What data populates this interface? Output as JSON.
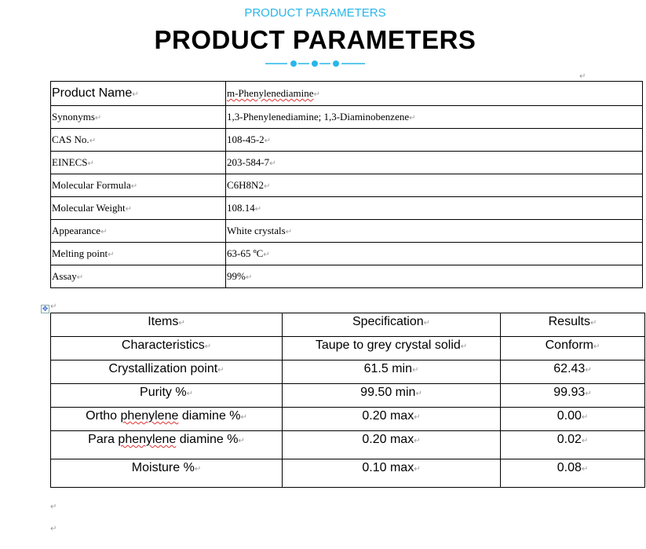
{
  "header": {
    "subtitle": "PRODUCT PARAMETERS",
    "title": "PRODUCT PARAMETERS",
    "accent_color": "#29b6ea"
  },
  "params": [
    {
      "label": "Product Name",
      "value": "m-Phenylenediamine"
    },
    {
      "label": "Synonyms",
      "value": "1,3-Phenylenediamine; 1,3-Diaminobenzene"
    },
    {
      "label": "CAS No.",
      "value": "108-45-2"
    },
    {
      "label": "EINECS",
      "value": "203-584-7"
    },
    {
      "label": "Molecular Formula",
      "value": "C6H8N2"
    },
    {
      "label": "Molecular Weight",
      "value": "108.14"
    },
    {
      "label": "Appearance",
      "value": "White crystals"
    },
    {
      "label": "Melting point",
      "value": "63-65 ºC"
    },
    {
      "label": "Assay",
      "value": "99%"
    }
  ],
  "spec_table": {
    "headers": [
      "Items",
      "Specification",
      "Results"
    ],
    "rows": [
      [
        "Characteristics",
        "Taupe to grey crystal solid",
        "Conform"
      ],
      [
        "Crystallization point",
        "61.5 min",
        "62.43"
      ],
      [
        "Purity %",
        "99.50 min",
        "99.93"
      ],
      [
        "Ortho phenylene diamine %",
        "0.20 max",
        "0.00"
      ],
      [
        "Para phenylene diamine %",
        "0.20 max",
        "0.02"
      ],
      [
        "Moisture %",
        "0.10 max",
        "0.08"
      ]
    ]
  },
  "paragraph_mark": "↵"
}
